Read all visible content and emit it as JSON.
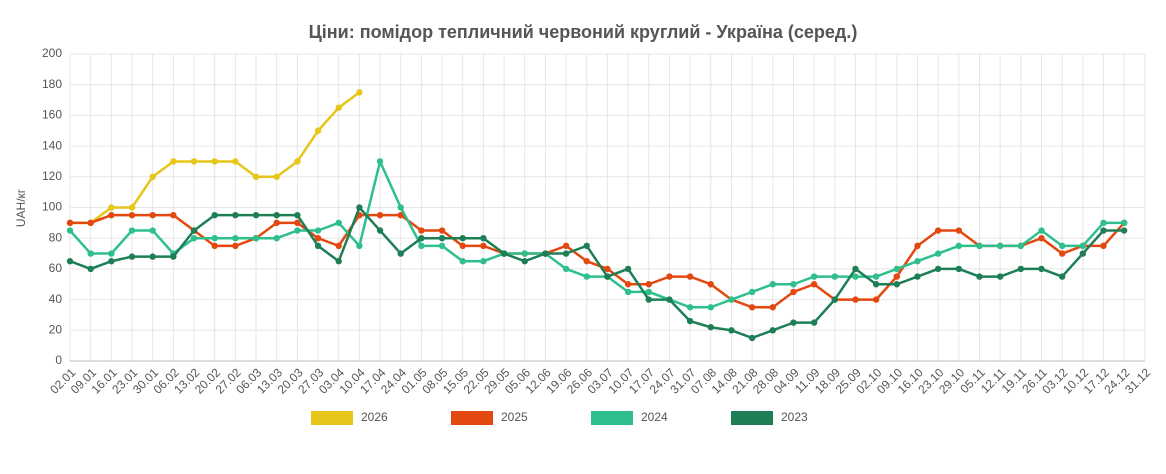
{
  "chart_data": {
    "type": "line",
    "title": "Ціни: помідор тепличний червоний круглий - Україна (серед.)",
    "y_label": "UAH/кг",
    "categories": [
      "02.01",
      "09.01",
      "16.01",
      "23.01",
      "30.01",
      "06.02",
      "13.02",
      "20.02",
      "27.02",
      "06.03",
      "13.03",
      "20.03",
      "27.03",
      "03.04",
      "10.04",
      "17.04",
      "24.04",
      "01.05",
      "08.05",
      "15.05",
      "22.05",
      "29.05",
      "05.06",
      "12.06",
      "19.06",
      "26.06",
      "03.07",
      "10.07",
      "17.07",
      "24.07",
      "31.07",
      "07.08",
      "14.08",
      "21.08",
      "28.08",
      "04.09",
      "11.09",
      "18.09",
      "25.09",
      "02.10",
      "09.10",
      "16.10",
      "23.10",
      "29.10",
      "05.11",
      "12.11",
      "19.11",
      "26.11",
      "03.12",
      "10.12",
      "17.12",
      "24.12",
      "31.12"
    ],
    "series": [
      {
        "name": "2026",
        "color": "#e6c619",
        "values": [
          90,
          90,
          100,
          100,
          120,
          130,
          130,
          130,
          130,
          120,
          120,
          130,
          150,
          165,
          175,
          null,
          null,
          null,
          null,
          null,
          null,
          null,
          null,
          null,
          null,
          null,
          null,
          null,
          null,
          null,
          null,
          null,
          null,
          null,
          null,
          null,
          null,
          null,
          null,
          null,
          null,
          null,
          null,
          null,
          null,
          null,
          null,
          null,
          null,
          null,
          null,
          null,
          null
        ]
      },
      {
        "name": "2025",
        "color": "#e2480f",
        "values": [
          90,
          90,
          95,
          95,
          95,
          95,
          85,
          75,
          75,
          80,
          90,
          90,
          80,
          75,
          95,
          95,
          95,
          85,
          85,
          75,
          75,
          70,
          70,
          70,
          75,
          65,
          60,
          50,
          50,
          55,
          55,
          50,
          40,
          35,
          35,
          45,
          50,
          40,
          40,
          40,
          55,
          75,
          85,
          85,
          75,
          75,
          75,
          80,
          70,
          75,
          75,
          90,
          null
        ]
      },
      {
        "name": "2024",
        "color": "#2ebf8c",
        "values": [
          85,
          70,
          70,
          85,
          85,
          70,
          80,
          80,
          80,
          80,
          80,
          85,
          85,
          90,
          75,
          130,
          100,
          75,
          75,
          65,
          65,
          70,
          70,
          70,
          60,
          55,
          55,
          45,
          45,
          40,
          35,
          35,
          40,
          45,
          50,
          50,
          55,
          55,
          55,
          55,
          60,
          65,
          70,
          75,
          75,
          75,
          75,
          85,
          75,
          75,
          90,
          90,
          null
        ]
      },
      {
        "name": "2023",
        "color": "#1e7f57",
        "values": [
          65,
          60,
          65,
          68,
          68,
          68,
          85,
          95,
          95,
          95,
          95,
          95,
          75,
          65,
          100,
          85,
          70,
          80,
          80,
          80,
          80,
          70,
          65,
          70,
          70,
          75,
          55,
          60,
          40,
          40,
          26,
          22,
          20,
          15,
          20,
          25,
          25,
          40,
          60,
          50,
          50,
          55,
          60,
          60,
          55,
          55,
          60,
          60,
          55,
          70,
          85,
          85,
          null
        ]
      }
    ],
    "ylim": [
      0,
      200
    ],
    "yticks": [
      0,
      20,
      40,
      60,
      80,
      100,
      120,
      140,
      160,
      180,
      200
    ],
    "grid": true,
    "legend": "bottom"
  }
}
